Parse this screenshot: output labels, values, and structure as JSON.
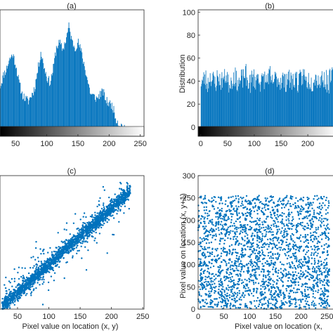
{
  "chart_data": [
    {
      "panel": "(a)",
      "type": "bar",
      "title": "(a)",
      "xlabel": "",
      "ylabel": "",
      "x_ticks": [
        "50",
        "100",
        "150",
        "200",
        "250"
      ],
      "y_ticks": [],
      "xlim": [
        25,
        256
      ],
      "ylim": [
        -8,
        100
      ],
      "colorbar": "grayscale 0-255",
      "grid": false,
      "x": [
        25,
        30,
        35,
        40,
        45,
        50,
        55,
        60,
        65,
        70,
        75,
        80,
        85,
        90,
        95,
        100,
        105,
        110,
        115,
        120,
        125,
        130,
        135,
        140,
        145,
        150,
        155,
        160,
        165,
        170,
        175,
        180,
        185,
        190,
        195,
        200,
        205,
        210,
        215,
        220,
        225,
        230,
        235,
        240,
        245,
        250
      ],
      "values": [
        35,
        44,
        50,
        58,
        62,
        53,
        38,
        28,
        24,
        22,
        27,
        33,
        48,
        64,
        52,
        42,
        38,
        50,
        68,
        72,
        66,
        74,
        86,
        73,
        68,
        72,
        64,
        52,
        40,
        28,
        26,
        24,
        28,
        30,
        22,
        20,
        18,
        8,
        3,
        1,
        0,
        0,
        0,
        0,
        0,
        0
      ]
    },
    {
      "panel": "(b)",
      "type": "bar",
      "title": "(b)",
      "xlabel": "",
      "ylabel": "Distribution",
      "x_ticks": [
        "0",
        "50",
        "100",
        "150",
        "200"
      ],
      "y_ticks": [
        "0",
        "20",
        "40",
        "60",
        "80",
        "100"
      ],
      "xlim": [
        -5,
        255
      ],
      "ylim": [
        -8,
        102
      ],
      "colorbar": "grayscale 0-255",
      "grid": false,
      "x": [
        0,
        5,
        10,
        15,
        20,
        25,
        30,
        35,
        40,
        45,
        50,
        55,
        60,
        65,
        70,
        75,
        80,
        85,
        90,
        95,
        100,
        105,
        110,
        115,
        120,
        125,
        130,
        135,
        140,
        145,
        150,
        155,
        160,
        165,
        170,
        175,
        180,
        185,
        190,
        195,
        200,
        205,
        210,
        215,
        220,
        225,
        230,
        235,
        240,
        245,
        250
      ],
      "values": [
        40,
        42,
        38,
        44,
        41,
        39,
        43,
        40,
        42,
        45,
        38,
        41,
        44,
        40,
        39,
        42,
        46,
        40,
        38,
        43,
        41,
        44,
        39,
        42,
        40,
        45,
        38,
        41,
        43,
        40,
        42,
        39,
        44,
        41,
        40,
        43,
        38,
        42,
        45,
        40,
        41,
        39,
        44,
        42,
        40,
        43,
        41,
        38,
        42,
        44,
        40
      ]
    },
    {
      "panel": "(c)",
      "type": "scatter",
      "title": "(c)",
      "xlabel": "Pixel value on location (x, y)",
      "ylabel": "",
      "x_ticks": [
        "50",
        "100",
        "150",
        "200",
        "250"
      ],
      "y_ticks": [],
      "xlim": [
        22,
        252
      ],
      "ylim": [
        20,
        258
      ],
      "grid": false,
      "trend": "strong positive correlation along y = x"
    },
    {
      "panel": "(d)",
      "type": "scatter",
      "title": "(d)",
      "xlabel": "Pixel value on location (x,",
      "ylabel": "Pixel value on location (x, y+1)",
      "x_ticks": [
        "0",
        "50",
        "100",
        "150",
        "200",
        "250"
      ],
      "y_ticks": [
        "0",
        "50",
        "100",
        "150",
        "200",
        "250",
        "300"
      ],
      "xlim": [
        0,
        270
      ],
      "ylim": [
        0,
        300
      ],
      "grid": false,
      "trend": "uniformly scattered over 0-255, no correlation"
    }
  ],
  "colors": {
    "bars": "#0072BD",
    "points": "#0072BD",
    "axes": "#262626"
  }
}
